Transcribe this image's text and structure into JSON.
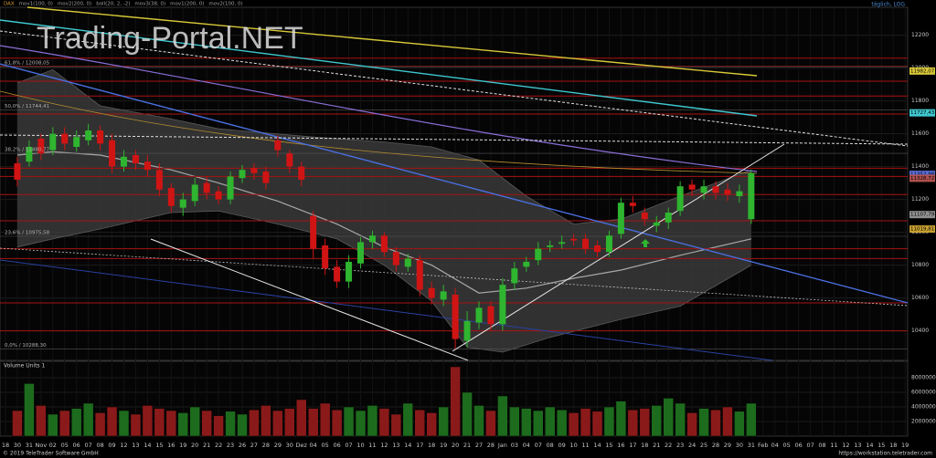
{
  "chart_data": {
    "type": "candlestick",
    "indicator_labels": [
      "DAX",
      "mov1(100, 0)",
      "mov2(200, 0)",
      "boll(20, 2, -2)",
      "mov3(38, 0)",
      "mov1(200, 0)",
      "mov2(100, 0)"
    ],
    "scale_note": "täglich, LOG",
    "watermark": "Trading-Portal.NET",
    "categories": [
      "18",
      "30",
      "31",
      "Nov",
      "02",
      "05",
      "06",
      "07",
      "08",
      "09",
      "12",
      "13",
      "14",
      "15",
      "16",
      "19",
      "20",
      "21",
      "22",
      "23",
      "26",
      "27",
      "28",
      "29",
      "30",
      "Dez",
      "04",
      "05",
      "06",
      "07",
      "10",
      "11",
      "12",
      "13",
      "14",
      "17",
      "18",
      "19",
      "20",
      "21",
      "27",
      "28",
      "Jan",
      "03",
      "04",
      "07",
      "08",
      "09",
      "10",
      "11",
      "14",
      "15",
      "16",
      "17",
      "18",
      "21",
      "22",
      "23",
      "24",
      "25",
      "28",
      "29",
      "30",
      "31",
      "Feb",
      "04",
      "05",
      "06",
      "07",
      "08",
      "11",
      "12",
      "13",
      "14",
      "15",
      "18",
      "19"
    ],
    "open": [
      null,
      11420,
      11430,
      11570,
      11500,
      11600,
      11520,
      11560,
      11620,
      11560,
      11400,
      11470,
      11430,
      11380,
      11270,
      11150,
      11190,
      11300,
      11250,
      11200,
      11330,
      11390,
      11370,
      11560,
      11480,
      11400,
      11100,
      10920,
      10790,
      10700,
      10810,
      10940,
      10980,
      10880,
      10790,
      10830,
      10660,
      10590,
      10620,
      10340,
      10450,
      10550,
      10440,
      10690,
      10790,
      10830,
      10910,
      10930,
      10960,
      10960,
      10920,
      10880,
      10990,
      11180,
      11120,
      11040,
      11060,
      11130,
      11290,
      11240,
      11280,
      11260,
      11220,
      11080,
      null,
      null,
      null,
      null,
      null,
      null,
      null,
      null,
      null,
      null,
      null,
      null,
      null
    ],
    "high": [
      null,
      11460,
      11560,
      11600,
      11640,
      11640,
      11620,
      11660,
      11650,
      11600,
      11500,
      11500,
      11470,
      11420,
      11300,
      11240,
      11330,
      11340,
      11280,
      11370,
      11410,
      11420,
      11400,
      11590,
      11500,
      11430,
      11130,
      10960,
      10830,
      10860,
      10970,
      11010,
      11000,
      10910,
      10870,
      10860,
      10700,
      10680,
      10660,
      10520,
      10580,
      10580,
      10720,
      10820,
      10850,
      10940,
      10950,
      10980,
      10990,
      10990,
      10950,
      11010,
      11210,
      11220,
      11150,
      11100,
      11150,
      11310,
      11320,
      11320,
      11310,
      11300,
      11290,
      11380,
      null,
      null,
      null,
      null,
      null,
      null,
      null,
      null,
      null,
      null,
      null,
      null,
      null
    ],
    "low": [
      null,
      11280,
      11400,
      11440,
      11470,
      11500,
      11490,
      11530,
      11500,
      11360,
      11370,
      11380,
      11340,
      11220,
      11120,
      11100,
      11160,
      11200,
      11170,
      11170,
      11300,
      11320,
      11260,
      11460,
      11360,
      11280,
      10840,
      10740,
      10660,
      10660,
      10780,
      10900,
      10850,
      10760,
      10760,
      10610,
      10560,
      10550,
      10290,
      10300,
      10410,
      10400,
      10400,
      10650,
      10760,
      10800,
      10880,
      10900,
      10920,
      10870,
      10850,
      10850,
      10960,
      11120,
      11040,
      11000,
      11020,
      11100,
      11220,
      11200,
      11200,
      11190,
      11180,
      11050,
      null,
      null,
      null,
      null,
      null,
      null,
      null,
      null,
      null,
      null,
      null,
      null,
      null
    ],
    "close": [
      null,
      11320,
      11520,
      11480,
      11600,
      11540,
      11580,
      11620,
      11540,
      11400,
      11460,
      11420,
      11380,
      11260,
      11160,
      11200,
      11290,
      11240,
      11200,
      11340,
      11380,
      11360,
      11300,
      11500,
      11400,
      11320,
      10900,
      10780,
      10700,
      10820,
      10940,
      10980,
      10880,
      10800,
      10840,
      10650,
      10600,
      10640,
      10350,
      10460,
      10540,
      10440,
      10680,
      10780,
      10820,
      10900,
      10920,
      10940,
      10950,
      10900,
      10880,
      10980,
      11180,
      11160,
      11080,
      11060,
      11120,
      11280,
      11260,
      11280,
      11240,
      11230,
      11250,
      11360,
      null,
      null,
      null,
      null,
      null,
      null,
      null,
      null,
      null,
      null,
      null,
      null,
      null
    ],
    "up_color": "#2fb52f",
    "down_color": "#d01414",
    "ylim": [
      10220,
      12370
    ],
    "yticks": [
      10400,
      10600,
      10800,
      11000,
      11200,
      11400,
      11600,
      11800,
      12000,
      12200
    ],
    "grid": true,
    "horizontal_lines": [
      12060,
      12010,
      11920,
      11830,
      11720,
      11390,
      11340,
      11230,
      11070,
      10900,
      10840,
      10570,
      10400
    ],
    "horizontal_line_color": "#a81212",
    "fib_levels": [
      {
        "value": 12008.05,
        "label": "61,8% / 12008,05"
      },
      {
        "value": 11744.41,
        "label": "50,0% / 11744,41"
      },
      {
        "value": 11480.77,
        "label": "38,2% / 11480,77"
      },
      {
        "value": 10975.58,
        "label": "23,6% / 10975,58"
      },
      {
        "value": 10288.3,
        "label": "0,0% / 10288,30"
      }
    ],
    "price_markers": [
      {
        "value": 11982.07,
        "label": "11982,07",
        "color": "#d8c838"
      },
      {
        "value": 11727.43,
        "label": "11727,43",
        "color": "#3fc8d0"
      },
      {
        "value": 11352.98,
        "label": "11352,98",
        "color": "#5a6fd8"
      },
      {
        "value": 11328.72,
        "label": "11328,72",
        "color": "#b05050"
      },
      {
        "value": 11107.79,
        "label": "11107,79",
        "color": "#909090"
      },
      {
        "value": 11019.81,
        "label": "11019,81",
        "color": "#c8a030"
      }
    ],
    "bollinger": {
      "upper": {
        "x": [
          1,
          4,
          8,
          14,
          18,
          26,
          32,
          36,
          40,
          44,
          48,
          52,
          57,
          63
        ],
        "values": [
          11910,
          11990,
          11770,
          11690,
          11630,
          11580,
          11550,
          11520,
          11440,
          11220,
          11050,
          11080,
          11220,
          11380
        ]
      },
      "middle": {
        "x": [
          1,
          4,
          8,
          14,
          18,
          23,
          28,
          32,
          36,
          40,
          44,
          48,
          52,
          57,
          63
        ],
        "values": [
          11470,
          11490,
          11470,
          11380,
          11300,
          11190,
          11050,
          10910,
          10800,
          10630,
          10660,
          10720,
          10770,
          10860,
          10960
        ]
      },
      "lower": {
        "x": [
          1,
          4,
          8,
          14,
          18,
          23,
          28,
          32,
          36,
          39,
          42,
          46,
          52,
          57,
          63
        ],
        "values": [
          10910,
          10960,
          11020,
          11120,
          11130,
          11050,
          10960,
          10800,
          10580,
          10300,
          10270,
          10360,
          10470,
          10550,
          10800
        ]
      }
    },
    "volume": {
      "label": "Volume Units 1",
      "values": [
        null,
        3500000,
        7200000,
        4200000,
        3000000,
        3500000,
        3800000,
        4500000,
        3200000,
        4000000,
        3500000,
        3000000,
        4200000,
        3800000,
        3500000,
        3200000,
        4000000,
        3500000,
        2800000,
        3400000,
        3000000,
        3600000,
        4200000,
        3500000,
        3800000,
        5000000,
        3800000,
        4500000,
        3600000,
        4000000,
        3500000,
        4200000,
        3800000,
        3000000,
        4500000,
        3600000,
        3200000,
        4000000,
        9500000,
        6000000,
        4200000,
        3500000,
        5500000,
        4000000,
        3800000,
        3500000,
        4000000,
        3600000,
        3200000,
        3800000,
        3400000,
        4000000,
        4800000,
        3600000,
        3800000,
        4200000,
        5200000,
        4500000,
        3200000,
        3800000,
        3600000,
        4000000,
        3400000,
        4500000,
        null,
        null,
        null,
        null,
        null,
        null,
        null,
        null,
        null,
        null,
        null,
        null,
        null
      ],
      "up_color": "#1d6b1d",
      "down_color": "#8a1a1a",
      "ylim": [
        0,
        10000000
      ],
      "yticks": [
        2000000,
        4000000,
        6000000,
        8000000
      ]
    },
    "copyright": "© 2019 TeleTrader Software GmbH",
    "url": "https://workstation.teletrader.com"
  }
}
